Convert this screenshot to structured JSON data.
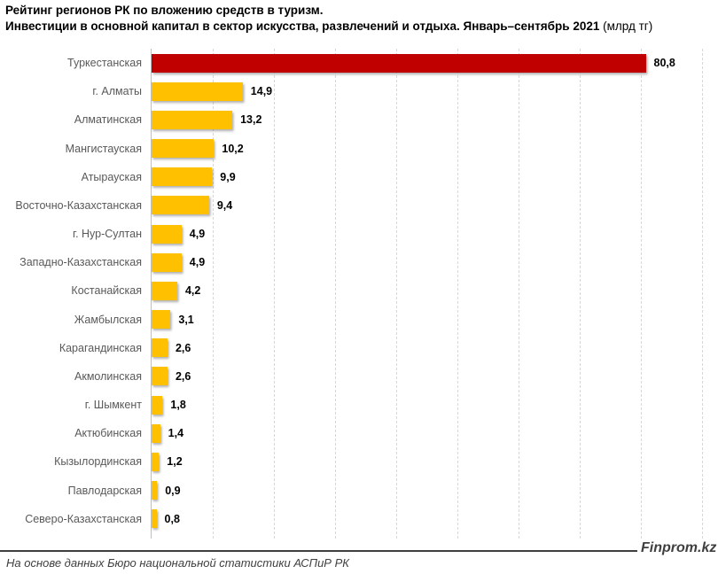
{
  "header": {
    "title_line1": "Рейтинг регионов РК по вложению средств в туризм.",
    "title_line2_bold": "Инвестиции в основной капитал в сектор искусства, развлечений и отдыха. Январь–сентябрь 2021",
    "title_line2_unit": " (млрд тг)"
  },
  "chart_data": {
    "type": "bar",
    "orientation": "horizontal",
    "title": "Рейтинг регионов РК по вложению средств в туризм. Инвестиции в основной капитал в сектор искусства, развлечений и отдыха. Январь–сентябрь 2021 (млрд тг)",
    "unit": "млрд тг",
    "categories": [
      "Туркестанская",
      "г. Алматы",
      "Алматинская",
      "Мангистауская",
      "Атырауская",
      "Восточно-Казахстанская",
      "г. Нур-Султан",
      "Западно-Казахстанская",
      "Костанайская",
      "Жамбылская",
      "Карагандинская",
      "Акмолинская",
      "г. Шымкент",
      "Актюбинская",
      "Кызылординская",
      "Павлодарская",
      "Северо-Казахстанская"
    ],
    "values": [
      80.8,
      14.9,
      13.2,
      10.2,
      9.9,
      9.4,
      4.9,
      4.9,
      4.2,
      3.1,
      2.6,
      2.6,
      1.8,
      1.4,
      1.2,
      0.9,
      0.8
    ],
    "value_labels": [
      "80,8",
      "14,9",
      "13,2",
      "10,2",
      "9,9",
      "9,4",
      "4,9",
      "4,9",
      "4,2",
      "3,1",
      "2,6",
      "2,6",
      "1,8",
      "1,4",
      "1,2",
      "0,9",
      "0,8"
    ],
    "xlim": [
      0,
      90
    ],
    "gridline_step": 10,
    "grid": "vertical-dashed",
    "legend": "none",
    "axis_tick_labels_shown": false,
    "highlight_index": 0,
    "highlight_color": "#C00000",
    "bar_color": "#FFC000"
  },
  "footer": {
    "source": "На основе данных Бюро национальной статистики АСПиР РК",
    "watermark": "Finprom.kz"
  },
  "colors": {
    "background": "#FFFFFF",
    "title_text": "#000000",
    "category_label": "#595959",
    "value_label": "#000000",
    "gridline": "#D6D6D6",
    "axis_line": "#BFBFBF",
    "footer_rule": "#3F3F3F",
    "footer_text": "#404040"
  }
}
